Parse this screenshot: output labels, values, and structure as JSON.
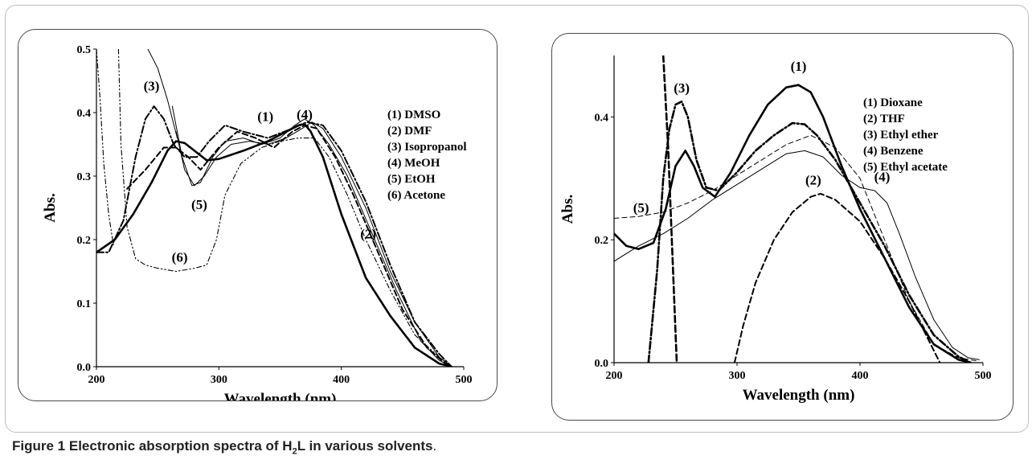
{
  "caption": {
    "label": "Figure 1",
    "text_before": "Electronic absorption spectra of H",
    "sub": "2",
    "text_after": "L in various solvents"
  },
  "chart_data": [
    {
      "type": "line",
      "xlabel": "Wavelength (nm)",
      "ylabel": "Abs.",
      "xlim": [
        200,
        500
      ],
      "ylim": [
        0,
        0.5
      ],
      "x_ticks": [
        200,
        300,
        400,
        500
      ],
      "x_tick_labels": [
        "200",
        "300",
        "400",
        "500"
      ],
      "y_ticks": [
        0,
        0.1,
        0.2,
        0.3,
        0.4,
        0.5
      ],
      "y_tick_labels": [
        "0.0",
        "0.1",
        "0.2",
        "0.3",
        "0.4",
        "0.5"
      ],
      "legend": [
        "(1) DMSO",
        "(2) DMF",
        "(3) Isopropanol",
        "(4) MeOH",
        "(5) EtOH",
        "(6) Acetone"
      ],
      "legend_position": "right",
      "annotations": [
        {
          "text": "(3)",
          "x": 245,
          "y": 0.435
        },
        {
          "text": "(1)",
          "x": 338,
          "y": 0.387
        },
        {
          "text": "(4)",
          "x": 370,
          "y": 0.39
        },
        {
          "text": "(5)",
          "x": 284,
          "y": 0.248
        },
        {
          "text": "(6)",
          "x": 268,
          "y": 0.165
        },
        {
          "text": "(2)",
          "x": 422,
          "y": 0.202
        }
      ],
      "series": [
        {
          "name": "(1) DMSO",
          "style": "thick-solid",
          "x": [
            200,
            215,
            230,
            245,
            258,
            265,
            272,
            280,
            290,
            300,
            320,
            340,
            355,
            365,
            370,
            375,
            385,
            400,
            420,
            440,
            460,
            480,
            490
          ],
          "y": [
            0.18,
            0.2,
            0.24,
            0.29,
            0.34,
            0.355,
            0.352,
            0.34,
            0.325,
            0.327,
            0.34,
            0.355,
            0.37,
            0.38,
            0.382,
            0.37,
            0.33,
            0.24,
            0.14,
            0.08,
            0.03,
            0.005,
            0.0
          ]
        },
        {
          "name": "(2) DMF",
          "style": "dashed",
          "x": [
            225,
            240,
            255,
            265,
            275,
            285,
            300,
            315,
            330,
            345,
            360,
            370,
            380,
            395,
            410,
            430,
            450,
            470,
            485,
            490
          ],
          "y": [
            0.28,
            0.31,
            0.345,
            0.345,
            0.33,
            0.31,
            0.345,
            0.37,
            0.36,
            0.345,
            0.37,
            0.38,
            0.375,
            0.33,
            0.27,
            0.18,
            0.09,
            0.03,
            0.005,
            0.0
          ]
        },
        {
          "name": "(3) Isopropanol",
          "style": "dash-dot",
          "x": [
            200,
            210,
            222,
            232,
            240,
            247,
            255,
            263,
            272,
            282,
            292,
            305,
            320,
            340,
            360,
            372,
            385,
            400,
            420,
            440,
            460,
            480,
            490
          ],
          "y": [
            0.18,
            0.18,
            0.23,
            0.33,
            0.39,
            0.41,
            0.39,
            0.35,
            0.33,
            0.33,
            0.355,
            0.38,
            0.37,
            0.36,
            0.375,
            0.385,
            0.38,
            0.34,
            0.26,
            0.16,
            0.07,
            0.02,
            0.0
          ]
        },
        {
          "name": "(4) MeOH",
          "style": "thin-solid",
          "x": [
            262,
            270,
            278,
            285,
            295,
            305,
            320,
            335,
            350,
            362,
            370,
            378,
            390,
            405,
            425,
            445,
            465,
            480,
            490
          ],
          "y": [
            0.41,
            0.33,
            0.285,
            0.29,
            0.33,
            0.355,
            0.36,
            0.35,
            0.36,
            0.38,
            0.39,
            0.38,
            0.35,
            0.3,
            0.21,
            0.12,
            0.04,
            0.01,
            0.0
          ]
        },
        {
          "name": "(5) EtOH",
          "style": "thin-solid",
          "x": [
            265,
            272,
            280,
            288,
            298,
            310,
            325,
            340,
            355,
            368,
            376,
            385,
            400,
            420,
            440,
            460,
            480,
            490
          ],
          "y": [
            0.37,
            0.31,
            0.285,
            0.3,
            0.33,
            0.35,
            0.355,
            0.35,
            0.36,
            0.375,
            0.385,
            0.375,
            0.33,
            0.25,
            0.15,
            0.07,
            0.015,
            0.0
          ]
        },
        {
          "name": "(6) Acetone",
          "style": "dash-dot-dot",
          "x": [
            218,
            220,
            225,
            232,
            240,
            250,
            265,
            280,
            290,
            298,
            305,
            318,
            335,
            350,
            365,
            378,
            390,
            405,
            420,
            440,
            460,
            480,
            490
          ],
          "y": [
            0.5,
            0.35,
            0.22,
            0.17,
            0.16,
            0.155,
            0.15,
            0.155,
            0.16,
            0.2,
            0.27,
            0.32,
            0.345,
            0.355,
            0.36,
            0.36,
            0.33,
            0.27,
            0.2,
            0.12,
            0.05,
            0.015,
            0.0
          ]
        },
        {
          "name": "(1) DMSO steep",
          "style": "thin-solid",
          "x": [
            242,
            250,
            258,
            266
          ],
          "y": [
            0.5,
            0.47,
            0.42,
            0.36
          ]
        },
        {
          "name": "(6) Acetone left",
          "style": "dash-dot-dot",
          "x": [
            200,
            203,
            206,
            210,
            214
          ],
          "y": [
            0.5,
            0.42,
            0.32,
            0.24,
            0.19
          ]
        }
      ]
    },
    {
      "type": "line",
      "xlabel": "Wavelength (nm)",
      "ylabel": "Abs.",
      "xlim": [
        200,
        500
      ],
      "ylim": [
        0,
        0.5
      ],
      "x_ticks": [
        200,
        300,
        400,
        500
      ],
      "x_tick_labels": [
        "200",
        "300",
        "400",
        "500"
      ],
      "y_ticks": [
        0,
        0.2,
        0.4
      ],
      "y_tick_labels": [
        "0.0",
        "0.2",
        "0.4"
      ],
      "legend": [
        "(1) Dioxane",
        "(2) THF",
        "(3) Ethyl ether",
        "(4) Benzene",
        "(5) Ethyl acetate"
      ],
      "legend_position": "top-right",
      "annotations": [
        {
          "text": "(1)",
          "x": 350,
          "y": 0.475
        },
        {
          "text": "(3)",
          "x": 255,
          "y": 0.44
        },
        {
          "text": "(2)",
          "x": 362,
          "y": 0.29
        },
        {
          "text": "(4)",
          "x": 418,
          "y": 0.295
        },
        {
          "text": "(5)",
          "x": 222,
          "y": 0.245
        }
      ],
      "series": [
        {
          "name": "(1) Dioxane",
          "style": "thick-solid",
          "x": [
            200,
            210,
            220,
            232,
            242,
            250,
            258,
            265,
            272,
            282,
            295,
            310,
            325,
            340,
            350,
            360,
            370,
            385,
            400,
            420,
            440,
            460,
            480,
            490
          ],
          "y": [
            0.21,
            0.19,
            0.185,
            0.195,
            0.25,
            0.32,
            0.345,
            0.32,
            0.285,
            0.27,
            0.31,
            0.37,
            0.42,
            0.448,
            0.452,
            0.44,
            0.4,
            0.32,
            0.25,
            0.17,
            0.09,
            0.03,
            0.005,
            0.0
          ]
        },
        {
          "name": "(2) THF",
          "style": "dashed",
          "x": [
            298,
            305,
            315,
            330,
            345,
            360,
            368,
            380,
            400,
            420,
            440,
            455,
            465
          ],
          "y": [
            0.0,
            0.06,
            0.13,
            0.2,
            0.245,
            0.27,
            0.275,
            0.265,
            0.23,
            0.17,
            0.1,
            0.04,
            0.0
          ]
        },
        {
          "name": "(3) Ethyl ether",
          "style": "thick-dash-dot",
          "x": [
            228,
            235,
            240,
            245,
            250,
            255,
            260,
            267,
            275,
            285,
            300,
            315,
            330,
            345,
            355,
            365,
            380,
            400,
            420,
            440,
            460,
            480,
            490
          ],
          "y": [
            0.0,
            0.15,
            0.3,
            0.38,
            0.42,
            0.425,
            0.4,
            0.33,
            0.285,
            0.28,
            0.31,
            0.345,
            0.37,
            0.39,
            0.388,
            0.37,
            0.33,
            0.26,
            0.19,
            0.11,
            0.045,
            0.01,
            0.0
          ]
        },
        {
          "name": "(4) Benzene",
          "style": "thin-solid",
          "x": [
            200,
            220,
            240,
            260,
            280,
            300,
            320,
            340,
            355,
            370,
            385,
            400,
            412,
            422,
            432,
            445,
            460,
            475,
            488,
            497
          ],
          "y": [
            0.165,
            0.19,
            0.21,
            0.235,
            0.265,
            0.29,
            0.315,
            0.34,
            0.345,
            0.335,
            0.305,
            0.285,
            0.28,
            0.26,
            0.21,
            0.14,
            0.07,
            0.025,
            0.008,
            0.005
          ]
        },
        {
          "name": "(5) Ethyl acetate",
          "style": "thin-dashed",
          "x": [
            200,
            220,
            240,
            260,
            280,
            300,
            320,
            340,
            360,
            380,
            400,
            420,
            440,
            460,
            480,
            495
          ],
          "y": [
            0.235,
            0.238,
            0.245,
            0.26,
            0.28,
            0.305,
            0.33,
            0.355,
            0.37,
            0.35,
            0.3,
            0.2,
            0.1,
            0.03,
            0.008,
            0.003
          ]
        },
        {
          "name": "(3) Ethyl ether steep",
          "style": "thick-dashed",
          "x": [
            240,
            244,
            248,
            251
          ],
          "y": [
            0.5,
            0.35,
            0.15,
            0.0
          ]
        }
      ]
    }
  ]
}
